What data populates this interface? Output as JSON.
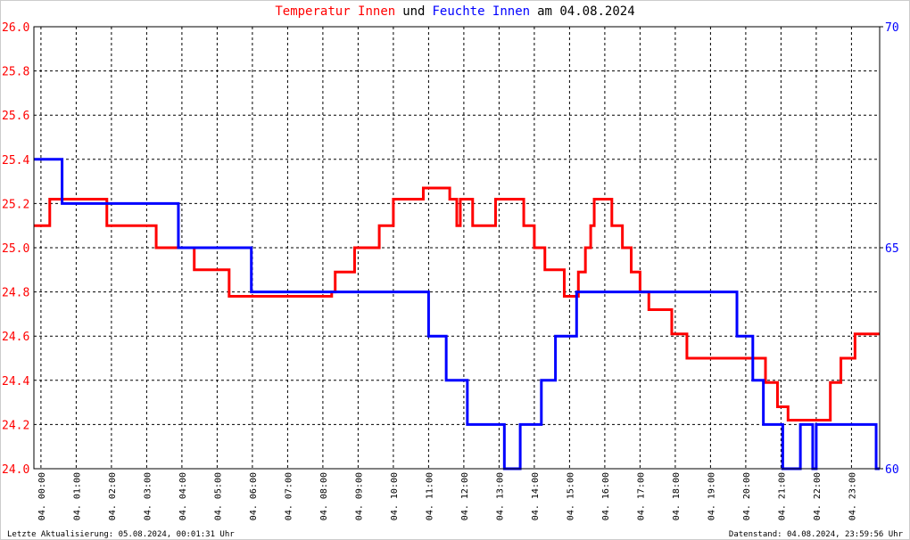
{
  "chart_data": {
    "type": "line",
    "step": true,
    "title_parts": [
      {
        "text": "Temperatur Innen",
        "color": "#ff0000"
      },
      {
        "text": "und",
        "color": "#000000"
      },
      {
        "text": "Feuchte Innen",
        "color": "#0000ff"
      },
      {
        "text": "am 04.08.2024",
        "color": "#000000"
      }
    ],
    "footer_left": "Letzte Aktualisierung: 05.08.2024, 00:01:31 Uhr",
    "footer_right": "Datenstand: 04.08.2024, 23:59:56 Uhr",
    "xlim": [
      -0.2,
      23.8
    ],
    "xticks": [
      {
        "value": 0,
        "label": "04. 00:00"
      },
      {
        "value": 1,
        "label": "04. 01:00"
      },
      {
        "value": 2,
        "label": "04. 02:00"
      },
      {
        "value": 3,
        "label": "04. 03:00"
      },
      {
        "value": 4,
        "label": "04. 04:00"
      },
      {
        "value": 5,
        "label": "04. 05:00"
      },
      {
        "value": 6,
        "label": "04. 06:00"
      },
      {
        "value": 7,
        "label": "04. 07:00"
      },
      {
        "value": 8,
        "label": "04. 08:00"
      },
      {
        "value": 9,
        "label": "04. 09:00"
      },
      {
        "value": 10,
        "label": "04. 10:00"
      },
      {
        "value": 11,
        "label": "04. 11:00"
      },
      {
        "value": 12,
        "label": "04. 12:00"
      },
      {
        "value": 13,
        "label": "04. 13:00"
      },
      {
        "value": 14,
        "label": "04. 14:00"
      },
      {
        "value": 15,
        "label": "04. 15:00"
      },
      {
        "value": 16,
        "label": "04. 16:00"
      },
      {
        "value": 17,
        "label": "04. 17:00"
      },
      {
        "value": 18,
        "label": "04. 18:00"
      },
      {
        "value": 19,
        "label": "04. 19:00"
      },
      {
        "value": 20,
        "label": "04. 20:00"
      },
      {
        "value": 21,
        "label": "04. 21:00"
      },
      {
        "value": 22,
        "label": "04. 22:00"
      },
      {
        "value": 23,
        "label": "04. 23:00"
      }
    ],
    "ylim": [
      24.0,
      26.0
    ],
    "yticks": [
      {
        "value": 24.0,
        "label": "24.0"
      },
      {
        "value": 24.2,
        "label": "24.2"
      },
      {
        "value": 24.4,
        "label": "24.4"
      },
      {
        "value": 24.6,
        "label": "24.6"
      },
      {
        "value": 24.8,
        "label": "24.8"
      },
      {
        "value": 25.0,
        "label": "25.0"
      },
      {
        "value": 25.2,
        "label": "25.2"
      },
      {
        "value": 25.4,
        "label": "25.4"
      },
      {
        "value": 25.6,
        "label": "25.6"
      },
      {
        "value": 25.8,
        "label": "25.8"
      },
      {
        "value": 26.0,
        "label": "26.0"
      }
    ],
    "y2lim": [
      60,
      70
    ],
    "y2ticks": [
      60,
      65,
      70
    ],
    "grid": true,
    "series": [
      {
        "name": "Temperatur Innen",
        "color": "#ff0000",
        "axis": "y",
        "x": [
          -0.2,
          0.25,
          1.87,
          3.27,
          4.35,
          5.34,
          8.25,
          8.35,
          8.9,
          9.6,
          10.0,
          10.85,
          11.6,
          11.8,
          11.9,
          12.25,
          12.9,
          13.7,
          14.0,
          14.3,
          14.85,
          15.25,
          15.45,
          15.6,
          15.7,
          16.2,
          16.5,
          16.75,
          17.0,
          17.25,
          17.9,
          18.33,
          20.56,
          20.9,
          21.2,
          22.4,
          22.7,
          23.1,
          23.8
        ],
        "values": [
          25.1,
          25.22,
          25.1,
          25.0,
          24.9,
          24.78,
          24.8,
          24.89,
          25.0,
          25.1,
          25.22,
          25.27,
          25.22,
          25.1,
          25.22,
          25.1,
          25.22,
          25.1,
          25.0,
          24.9,
          24.78,
          24.89,
          25.0,
          25.1,
          25.22,
          25.1,
          25.0,
          24.89,
          24.8,
          24.72,
          24.61,
          24.5,
          24.39,
          24.28,
          24.22,
          24.39,
          24.5,
          24.61,
          24.61
        ]
      },
      {
        "name": "Feuchte Innen",
        "color": "#0000ff",
        "axis": "y2",
        "x": [
          -0.2,
          0.6,
          3.9,
          5.97,
          11.0,
          11.5,
          12.1,
          13.15,
          13.6,
          14.2,
          14.6,
          15.2,
          19.75,
          20.2,
          20.5,
          21.05,
          21.55,
          21.9,
          22.0,
          23.7,
          23.8
        ],
        "values": [
          67,
          66,
          65,
          64,
          63,
          62,
          61,
          60,
          61,
          62,
          63,
          64,
          63,
          62,
          61,
          60,
          61,
          60,
          61,
          60,
          60
        ]
      }
    ]
  }
}
